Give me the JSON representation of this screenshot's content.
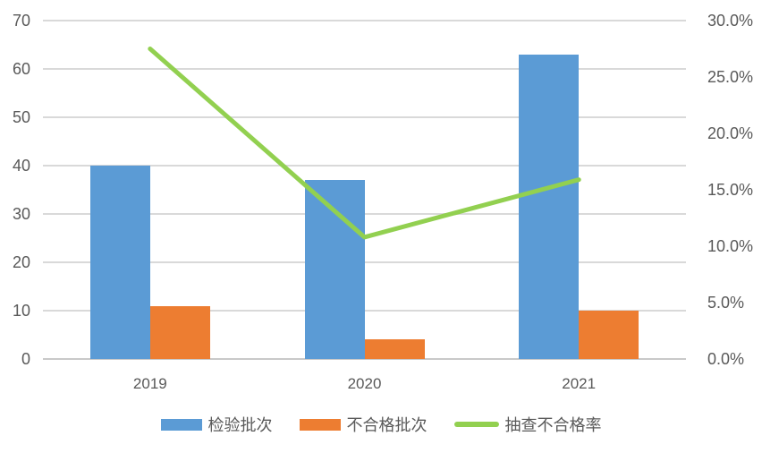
{
  "chart_data": {
    "type": "combo",
    "title": "",
    "categories": [
      "2019",
      "2020",
      "2021"
    ],
    "series": [
      {
        "id": "inspected-batches",
        "name": "检验批次",
        "type": "bar",
        "axis": "left",
        "color": "#5B9BD5",
        "values": [
          40,
          37,
          63
        ]
      },
      {
        "id": "failed-batches",
        "name": "不合格批次",
        "type": "bar",
        "axis": "left",
        "color": "#ED7D31",
        "values": [
          11,
          4,
          10
        ]
      },
      {
        "id": "failure-rate",
        "name": "抽查不合格率",
        "type": "line",
        "axis": "right",
        "color": "#92D050",
        "values": [
          27.5,
          10.8,
          15.9
        ]
      }
    ],
    "left_axis": {
      "min": 0,
      "max": 70,
      "step": 10,
      "tick_labels": [
        "0",
        "10",
        "20",
        "30",
        "40",
        "50",
        "60",
        "70"
      ]
    },
    "right_axis": {
      "min": 0,
      "max": 30,
      "step": 5,
      "tick_labels": [
        "0.0%",
        "5.0%",
        "10.0%",
        "15.0%",
        "20.0%",
        "25.0%",
        "30.0%"
      ]
    },
    "grid": true,
    "legend_position": "bottom"
  },
  "colors": {
    "text": "#595959",
    "gridline": "#D9D9D9",
    "axis_line": "#C9C9C9",
    "background": "#FFFFFF"
  }
}
